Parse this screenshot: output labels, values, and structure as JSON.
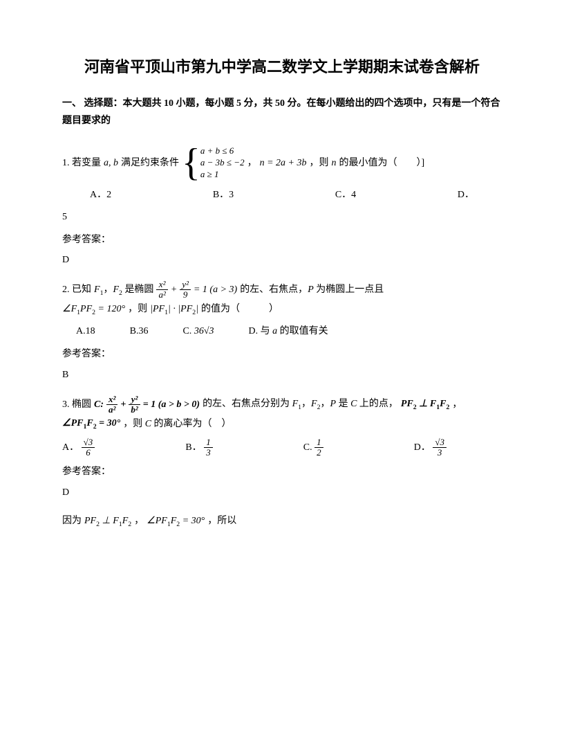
{
  "title": "河南省平顶山市第九中学高二数学文上学期期末试卷含解析",
  "section1": {
    "heading": "一、 选择题：本大题共 10 小题，每小题 5 分，共 50 分。在每小题给出的四个选项中，只有是一个符合题目要求的"
  },
  "q1": {
    "prefix": "1. 若变量",
    "var": "a, b",
    "mid1": " 满足约束条件 ",
    "sys1": "a + b ≤ 6",
    "sys2": "a − 3b ≤ −2",
    "sys3": "a ≥ 1",
    "mid2": "，",
    "expr": "n = 2a + 3b",
    "mid3": "，则",
    "nvar": " n ",
    "tail": "的最小值为（　　）]",
    "optA": "A．2",
    "optB": "B．3",
    "optC": "C．4",
    "optD": "D．",
    "optD2": "5",
    "ansLabel": "参考答案：",
    "ans": "D"
  },
  "q2": {
    "prefix": "2. 已知 ",
    "f1f2": "F₁，F₂ 是椭圆 ",
    "eq_lhs_num1": "x²",
    "eq_lhs_den1": "a²",
    "plus": " + ",
    "eq_lhs_num2": "y²",
    "eq_lhs_den2": "9",
    "eq_rhs": " = 1 (a > 3)",
    "mid1": " 的左、右焦点，P 为椭圆上一点且",
    "angle": "∠F₁PF₂ = 120°",
    "mid2": "，则 ",
    "prod": "|PF₁| · |PF₂|",
    "mid3": " 的值为（　　　）",
    "optA": "A.18",
    "optB": "B.36",
    "optC_pre": "C. ",
    "optC_val": "36√3",
    "optD": "D. 与 a 的取值有关",
    "ansLabel": "参考答案：",
    "ans": "B"
  },
  "q3": {
    "prefix": "3. 椭圆 ",
    "C": "C: ",
    "num1": "x²",
    "den1": "a²",
    "plus": " + ",
    "num2": "y²",
    "den2": "b²",
    "eq": " = 1 (a > b > 0)",
    "mid1": " 的左、右焦点分别为 F₁，F₂，P 是 C 上的点，",
    "perp": "PF₂ ⊥ F₁F₂",
    "comma": "，",
    "angle": "∠PF₁F₂ = 30°",
    "mid2": "，则 C 的离心率为（　）",
    "optA_pre": "A．",
    "optA_num": "√3",
    "optA_den": "6",
    "optB_pre": "B．",
    "optB_num": "1",
    "optB_den": "3",
    "optC_pre": "C. ",
    "optC_num": "1",
    "optC_den": "2",
    "optD_pre": "D．",
    "optD_num": "√3",
    "optD_den": "3",
    "ansLabel": "参考答案：",
    "ans": "D",
    "explain_pre": "因为 ",
    "explain_perp": "PF₂ ⊥ F₁F₂",
    "explain_mid": "，∠PF₁F₂ = 30°",
    "explain_tail": "，所以"
  }
}
